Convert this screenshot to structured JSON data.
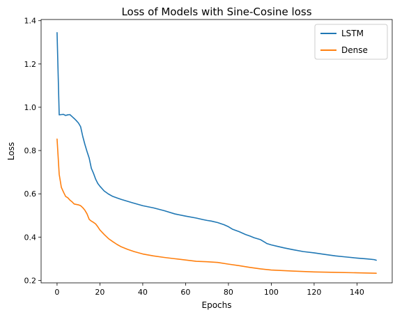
{
  "chart_data": {
    "type": "line",
    "title": "Loss of Models with Sine-Cosine loss",
    "xlabel": "Epochs",
    "ylabel": "Loss",
    "xlim": [
      -7.45,
      156.45
    ],
    "ylim": [
      0.1885,
      1.4055
    ],
    "xticks": [
      0,
      20,
      40,
      60,
      80,
      100,
      120,
      140
    ],
    "yticks": [
      0.2,
      0.4,
      0.6,
      0.8,
      1.0,
      1.2,
      1.4
    ],
    "ytick_labels": [
      "0.2",
      "0.4",
      "0.6",
      "0.8",
      "1.0",
      "1.2",
      "1.4"
    ],
    "grid": false,
    "legend_position": "top-right",
    "series": [
      {
        "name": "LSTM",
        "color": "#1f77b4",
        "x": [
          0,
          1,
          2,
          3,
          4,
          5,
          6,
          7,
          8,
          9,
          10,
          11,
          12,
          13,
          14,
          15,
          16,
          17,
          18,
          19,
          20,
          22,
          24,
          26,
          28,
          30,
          35,
          40,
          45,
          50,
          55,
          60,
          65,
          68,
          70,
          72,
          75,
          78,
          80,
          82,
          85,
          88,
          90,
          92,
          95,
          98,
          100,
          103,
          106,
          110,
          115,
          120,
          125,
          130,
          135,
          140,
          145,
          148,
          149
        ],
        "values": [
          1.345,
          0.965,
          0.966,
          0.967,
          0.962,
          0.965,
          0.966,
          0.957,
          0.948,
          0.938,
          0.927,
          0.91,
          0.865,
          0.828,
          0.795,
          0.765,
          0.718,
          0.695,
          0.668,
          0.648,
          0.635,
          0.613,
          0.599,
          0.588,
          0.581,
          0.574,
          0.559,
          0.545,
          0.535,
          0.522,
          0.507,
          0.497,
          0.488,
          0.481,
          0.477,
          0.474,
          0.467,
          0.457,
          0.448,
          0.436,
          0.425,
          0.412,
          0.405,
          0.397,
          0.388,
          0.37,
          0.364,
          0.357,
          0.35,
          0.342,
          0.333,
          0.327,
          0.32,
          0.313,
          0.308,
          0.303,
          0.299,
          0.296,
          0.293
        ]
      },
      {
        "name": "Dense",
        "color": "#ff7f0e",
        "x": [
          0,
          1,
          2,
          3,
          4,
          5,
          6,
          7,
          8,
          9,
          10,
          11,
          12,
          13,
          14,
          15,
          16,
          17,
          18,
          19,
          20,
          22,
          24,
          26,
          28,
          30,
          33,
          36,
          40,
          45,
          50,
          55,
          60,
          65,
          70,
          75,
          80,
          85,
          90,
          95,
          100,
          110,
          120,
          130,
          140,
          149
        ],
        "values": [
          0.853,
          0.69,
          0.63,
          0.608,
          0.588,
          0.582,
          0.571,
          0.563,
          0.553,
          0.551,
          0.549,
          0.545,
          0.536,
          0.524,
          0.507,
          0.482,
          0.474,
          0.468,
          0.461,
          0.448,
          0.433,
          0.412,
          0.393,
          0.379,
          0.366,
          0.355,
          0.343,
          0.333,
          0.322,
          0.313,
          0.306,
          0.3,
          0.294,
          0.288,
          0.286,
          0.283,
          0.275,
          0.268,
          0.26,
          0.253,
          0.248,
          0.243,
          0.239,
          0.237,
          0.235,
          0.233
        ]
      }
    ]
  }
}
